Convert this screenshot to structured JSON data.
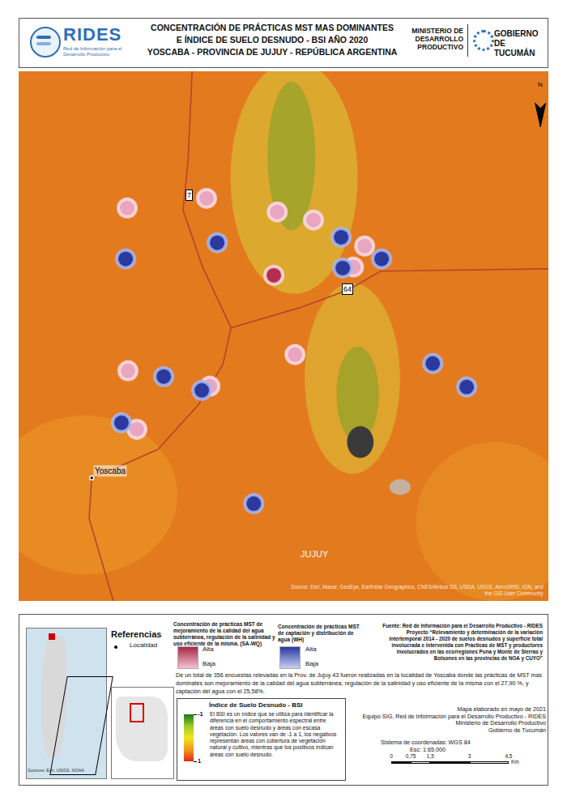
{
  "header": {
    "title_lines": [
      "CONCENTRACIÓN DE PRÁCTICAS MST MAS DOMINANTES",
      "E ÍNDICE DE SUELO DESNUDO - BSI AÑO 2020",
      "YOSCABA - PROVINCIA DE JUJUY - REPÚBLICA ARGENTINA"
    ],
    "logo_left": {
      "name": "RIDES",
      "subtitle_lines": [
        "Red de Información para el",
        "Desarrollo Productivo"
      ]
    },
    "logo_right": {
      "ministry_lines": [
        "MINISTERIO DE",
        "DESARROLLO",
        "PRODUCTIVO"
      ],
      "government_lines": [
        "GOBIERNO DE",
        "TUCUMÁN"
      ]
    }
  },
  "chart_data": {
    "type": "scatter",
    "tick_labels": false,
    "xlim": [
      0,
      20.3
    ],
    "ylim": [
      0,
      20.3
    ],
    "series": [
      {
        "name": "SA-WQ",
        "color": "#eaa6bf",
        "colors": [
          "#eaa6bf",
          "#eaa6bf",
          "#eaa6bf",
          "#eaa6bf",
          "#eaa6bf",
          "#eaa6bf",
          "#b3304f",
          "#eaa6bf",
          "#eaa6bf",
          "#eaa6bf",
          "#eaa6bf"
        ],
        "x": [
          4.16,
          7.2,
          9.91,
          11.3,
          13.26,
          12.83,
          9.78,
          10.59,
          4.19,
          7.33,
          4.53
        ],
        "y": [
          15.06,
          15.43,
          14.91,
          14.6,
          13.6,
          12.8,
          12.48,
          9.44,
          8.82,
          8.23,
          6.58
        ]
      },
      {
        "name": "WH",
        "color": "#2a3a9e",
        "x": [
          4.1,
          7.61,
          12.36,
          12.42,
          13.91,
          15.87,
          17.17,
          5.56,
          7.02,
          3.94,
          9.01
        ],
        "y": [
          13.11,
          13.73,
          13.94,
          12.76,
          13.11,
          9.1,
          8.2,
          8.6,
          8.07,
          6.83,
          3.73
        ]
      }
    ],
    "localities": [
      {
        "name": "Yoscaba",
        "x": 2.8,
        "y": 4.72
      }
    ],
    "roads": [
      {
        "label": "7",
        "label_x": 6.52,
        "label_y": 15.56,
        "x": [
          6.65,
          6.49,
          6.3,
          7.05,
          8.14,
          7.83,
          6.89,
          5.34,
          3.94,
          2.8,
          2.7,
          3.63
        ],
        "y": [
          20.31,
          16.83,
          14.97,
          12.8,
          10.47,
          9.07,
          7.52,
          5.81,
          5.19,
          4.72,
          3.17,
          0
        ]
      },
      {
        "label": "64",
        "label_x": 12.61,
        "label_y": 11.96,
        "x": [
          8.14,
          10.78,
          12.64,
          13.88,
          20.31
        ],
        "y": [
          10.47,
          11.24,
          11.93,
          12.64,
          12.73
        ]
      }
    ],
    "labels": [
      {
        "text": "JUJUY",
        "x": 11.34,
        "y": 1.8
      }
    ],
    "north": "N",
    "attribution": "Source: Esri, Maxar, GeoEye, Earthstar Geographics, CNES/Airbus DS, USDA, USGS, AeroGRID, IGN, and the GIS User Community"
  },
  "legend": {
    "title": "Referencias",
    "locality": "Localidad",
    "sawq": {
      "title": "Concentración de prácticas MST de mejoramiento de la calidad del agua subterránea, regulación de la salinidad y uso eficiente de la misma. (SA-WQ)",
      "high": "Alta",
      "low": "Baja"
    },
    "wh": {
      "title": "Concentración de prácticas MST de captación y distribución de agua (WH)",
      "high": "Alta",
      "low": "Baja"
    },
    "source": "Fuente: Red de Información para el Desarrollo Productivo - RIDES Proyecto “Relevamiento y determinación de la variación intertemporal 2014 - 2020 de suelos desnudos y superficie total involucrada e intervenida con Prácticas de MST y productores involucrados en las ecorregiones Puna y Monte de Sierras y Bolsones en las provincias de NOA y CUYO”",
    "summary": "De un total de 356 encuestas relevadas en la Prov. de Jujuy 43 fueron realizadas en la localidad de Yoscaba donde las prácticas de MST mas dominates son mejoramiento de la calidad del agua subterránea, regulación de la salinidad y uso eficiente de la misma con el 27,90 %, y captación del agua con el 25,58%.",
    "bsi": {
      "title": "Índice de Suelo Desnudo - BSI",
      "range": [
        -1,
        1
      ],
      "ticks": [
        -1,
        1
      ],
      "text": "El BSI es un índice que se utiliza para identificar la diferencia en el comportamiento espectral entre áreas con suelo desnudo y áreas con escasa vegetación. Los valores van de -1 a 1, los negativos representan áreas con cobertura de vegetación natural y cultivo, mientras que los positivos indican áreas con suelo desnudo."
    },
    "inset_source": "Sources: Esri, USGS, NOAA",
    "credits": [
      "Mapa elaborado en mayo de 2021",
      "Equipo SIG, Red de Información para el Desarrollo Productivo - RIDES",
      "Ministerio de Desarrollo Productivo",
      "Gobierno de Tucumán"
    ],
    "crs": "Sistema de coordenadas: WGS 84",
    "scale_text": "Esc: 1:65.000",
    "scale_bar": {
      "unit": "Km",
      "ticks": [
        {
          "value": 0,
          "label": "0"
        },
        {
          "value": 0.75,
          "label": "0,75"
        },
        {
          "value": 1.5,
          "label": "1,5"
        },
        {
          "value": 3,
          "label": "3"
        },
        {
          "value": 4.5,
          "label": "4,5"
        }
      ]
    }
  }
}
